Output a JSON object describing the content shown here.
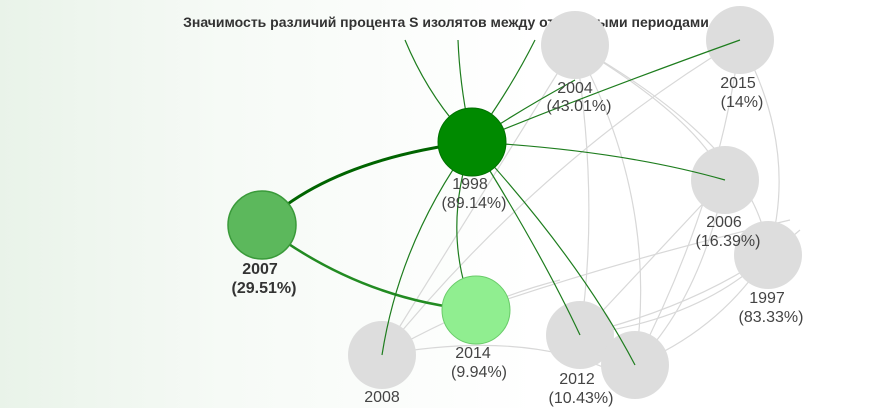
{
  "title": "Значимость различий процента S изолятов между отдельными периодами",
  "nodes": [
    {
      "id": "n2004",
      "year": "2004",
      "pct": "(43.01%)",
      "color": "#dddddd",
      "highlight": false
    },
    {
      "id": "n2015",
      "year": "2015",
      "pct": "(14%)",
      "color": "#dddddd",
      "highlight": false
    },
    {
      "id": "n1998",
      "year": "1998",
      "pct": "(89.14%)",
      "color": "#008a00",
      "highlight": false
    },
    {
      "id": "n2007",
      "year": "2007",
      "pct": "(29.51%)",
      "color": "#5cb85c",
      "highlight": true
    },
    {
      "id": "n2006",
      "year": "2006",
      "pct": "(16.39%)",
      "color": "#dddddd",
      "highlight": false
    },
    {
      "id": "n1997",
      "year": "1997",
      "pct": "(83.33%)",
      "color": "#dddddd",
      "highlight": false
    },
    {
      "id": "n2014",
      "year": "2014",
      "pct": "(9.94%)",
      "color": "#90ee90",
      "highlight": false
    },
    {
      "id": "n2012",
      "year": "2012",
      "pct": "(10.43%)",
      "color": "#dddddd",
      "highlight": false
    },
    {
      "id": "n_unk",
      "year": "2008",
      "pct": "",
      "color": "#dddddd",
      "highlight": false
    },
    {
      "id": "n_unk2",
      "year": "",
      "pct": "",
      "color": "#dddddd",
      "highlight": false
    }
  ],
  "colors": {
    "edge_strong": "#006400",
    "edge_medium": "#228b22",
    "edge_thin": "#1e7d1e",
    "edge_gray": "#d8d8d8"
  }
}
